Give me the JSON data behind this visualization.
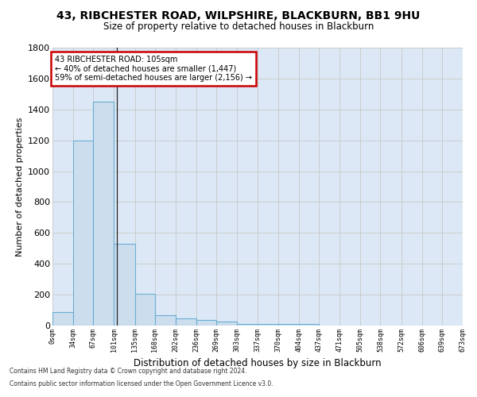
{
  "title1": "43, RIBCHESTER ROAD, WILPSHIRE, BLACKBURN, BB1 9HU",
  "title2": "Size of property relative to detached houses in Blackburn",
  "xlabel": "Distribution of detached houses by size in Blackburn",
  "ylabel": "Number of detached properties",
  "bin_edges": [
    0,
    34,
    67,
    101,
    135,
    168,
    202,
    236,
    269,
    303,
    337,
    370,
    404,
    437,
    471,
    505,
    538,
    572,
    606,
    639,
    673
  ],
  "bar_heights": [
    90,
    1200,
    1450,
    530,
    205,
    65,
    45,
    35,
    27,
    10,
    10,
    10,
    10,
    0,
    0,
    0,
    0,
    0,
    0,
    0
  ],
  "bar_color": "#ccdded",
  "bar_edge_color": "#6aafd4",
  "grid_color": "#c8c8c8",
  "property_size": 105,
  "annotation_title": "43 RIBCHESTER ROAD: 105sqm",
  "annotation_line1": "← 40% of detached houses are smaller (1,447)",
  "annotation_line2": "59% of semi-detached houses are larger (2,156) →",
  "annotation_box_color": "#ffffff",
  "annotation_box_edge": "#cc0000",
  "footer1": "Contains HM Land Registry data © Crown copyright and database right 2024.",
  "footer2": "Contains public sector information licensed under the Open Government Licence v3.0.",
  "ylim": [
    0,
    1800
  ],
  "yticks": [
    0,
    200,
    400,
    600,
    800,
    1000,
    1200,
    1400,
    1600,
    1800
  ],
  "background_color": "#dce8f5"
}
